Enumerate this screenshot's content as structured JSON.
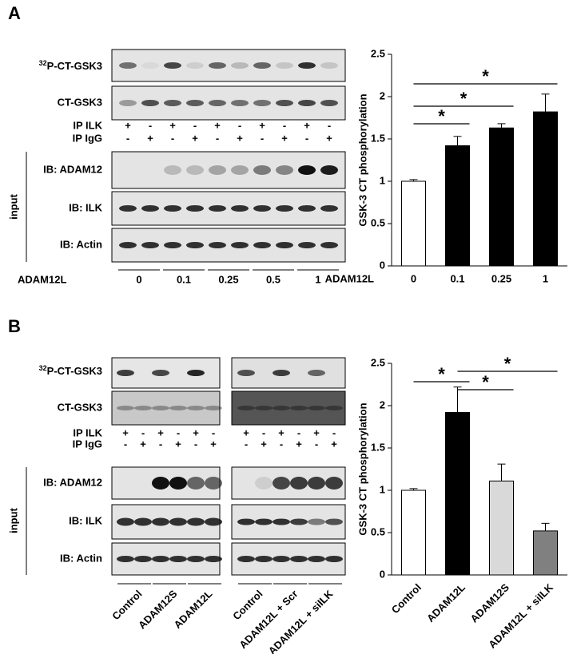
{
  "panel_labels": [
    "A",
    "B"
  ],
  "blots": [
    {
      "p32_sup": "32",
      "p32_label": "P-CT-GSK3",
      "ct_label": "CT-GSK3",
      "ip_ilk_label": "IP ILK",
      "ip_ilk": [
        "+",
        "-",
        "+",
        "-",
        "+",
        "-",
        "+",
        "-",
        "+",
        "-"
      ],
      "ip_igg_label": "IP IgG",
      "ip_igg": [
        "-",
        "+",
        "-",
        "+",
        "-",
        "+",
        "-",
        "+",
        "-",
        "+"
      ],
      "input_label": "input",
      "ib_labels": [
        "IB: ADAM12",
        "IB: ILK",
        "IB: Actin"
      ],
      "condition_label": "ADAM12L",
      "conditions": [
        "0",
        "0.1",
        "0.25",
        "0.5",
        "1"
      ]
    },
    {
      "p32_sup": "32",
      "p32_label": "P-CT-GSK3",
      "ct_label": "CT-GSK3",
      "ip_ilk_label": "IP ILK",
      "ip_ilk": [
        "+",
        "-",
        "+",
        "-",
        "+",
        "-",
        "+",
        "-",
        "+",
        "-",
        "+",
        "-"
      ],
      "ip_igg_label": "IP IgG",
      "ip_igg": [
        "-",
        "+",
        "-",
        "+",
        "-",
        "+",
        "-",
        "+",
        "-",
        "+",
        "-",
        "+"
      ],
      "input_label": "input",
      "ib_labels": [
        "IB: ADAM12",
        "IB: ILK",
        "IB: Actin"
      ],
      "conditions": [
        "Control",
        "ADAM12S",
        "ADAM12L",
        "Control",
        "ADAM12L + Scr",
        "ADAM12L + siILK"
      ]
    }
  ],
  "chart_data": [
    {
      "type": "bar",
      "y_label": "GSK-3 CT phosphorylation",
      "x_label": "ADAM12L",
      "categories": [
        "0",
        "0.1",
        "0.25",
        "1"
      ],
      "values": [
        1.0,
        1.42,
        1.63,
        1.82
      ],
      "errors": [
        0.02,
        0.11,
        0.05,
        0.21
      ],
      "colors": [
        "#ffffff",
        "#000000",
        "#000000",
        "#000000"
      ],
      "ylim": [
        0,
        2.5
      ],
      "yticks": [
        0,
        0.5,
        1,
        1.5,
        2,
        2.5
      ],
      "annotations": [
        "*",
        "*",
        "*"
      ]
    },
    {
      "type": "bar",
      "y_label": "GSK-3 CT phosphorylation",
      "categories": [
        "Control",
        "ADAM12L",
        "ADAM12S",
        "ADAM12L + siILK"
      ],
      "values": [
        1.0,
        1.92,
        1.11,
        0.52
      ],
      "errors": [
        0.02,
        0.3,
        0.2,
        0.09
      ],
      "colors": [
        "#ffffff",
        "#000000",
        "#d9d9d9",
        "#808080"
      ],
      "ylim": [
        0,
        2.5
      ],
      "yticks": [
        0,
        0.5,
        1,
        1.5,
        2,
        2.5
      ],
      "annotations": [
        "*",
        "*",
        "*"
      ]
    }
  ]
}
